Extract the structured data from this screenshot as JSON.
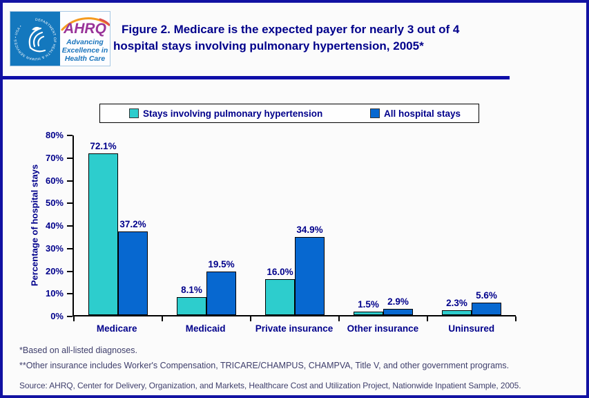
{
  "header": {
    "logo": {
      "seal_text": "DEPARTMENT OF HEALTH & HUMAN SERVICES • USA •",
      "brand": "AHRQ",
      "tagline_lines": [
        "Advancing",
        "Excellence in",
        "Health Care"
      ]
    },
    "title_lines": [
      "Figure 2. Medicare is the expected payer for nearly 3 out of 4",
      "hospital stays involving pulmonary hypertension, 2005*"
    ]
  },
  "chart_data": {
    "type": "bar",
    "title": "Figure 2. Medicare is the expected payer for nearly 3 out of 4 hospital stays involving pulmonary hypertension, 2005*",
    "categories": [
      "Medicare",
      "Medicaid",
      "Private insurance",
      "Other insurance",
      "Uninsured"
    ],
    "series": [
      {
        "name": "Stays involving pulmonary hypertension",
        "color": "#2DCDCD",
        "values": [
          72.1,
          8.1,
          16.0,
          1.5,
          2.3
        ]
      },
      {
        "name": "All hospital stays",
        "color": "#0768D0",
        "values": [
          37.2,
          19.5,
          34.9,
          2.9,
          5.6
        ]
      }
    ],
    "xlabel": "",
    "ylabel": "Percentage of hospital stays",
    "ylim": [
      0,
      80
    ],
    "ytick_step": 10,
    "ytick_suffix": "%",
    "value_label_suffix": "%",
    "grid": false,
    "legend_position": "top"
  },
  "footnotes": [
    "*Based on all-listed diagnoses.",
    "**Other insurance includes Worker's Compensation, TRICARE/CHAMPUS, CHAMPVA, Title V, and other government programs."
  ],
  "source": "Source: AHRQ, Center for Delivery, Organization, and Markets, Healthcare Cost and Utilization Project, Nationwide Inpatient Sample, 2005.",
  "colors": {
    "page_border": "#1212A2",
    "header_divider": "#0E0EA8",
    "title_text": "#00008B",
    "footnote_text": "#3E3E6B",
    "series1_teal": "#2DCDCD",
    "series2_blue": "#0768D0",
    "seal_background": "#1478BE",
    "brand_purple": "#993399",
    "tagline_blue": "#1B75BC",
    "arc_orange": "#F59B20"
  }
}
